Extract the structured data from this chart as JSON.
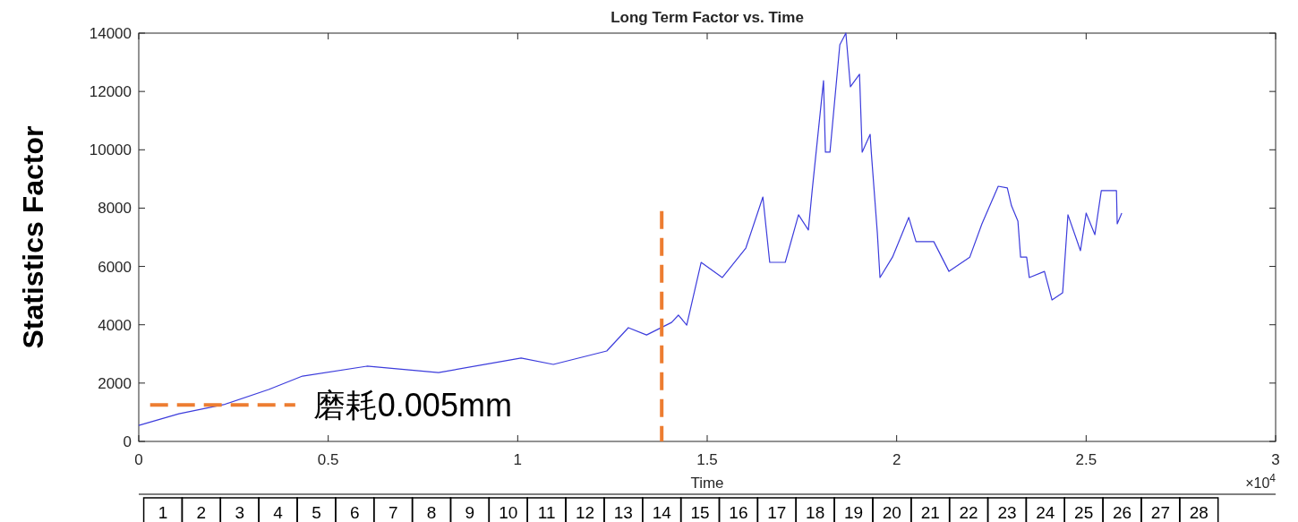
{
  "chart_data": {
    "type": "line",
    "title": "Long Term Factor vs. Time",
    "xlabel": "Time",
    "ylabel": "Statistics Factor",
    "annotations": [
      "×10$^{4}$"
    ],
    "xlim": [
      0,
      3
    ],
    "ylim": [
      0,
      14000
    ],
    "xticks": [
      0,
      0.5,
      1,
      1.5,
      2,
      2.5,
      3
    ],
    "yticks": [
      0,
      2000,
      4000,
      6000,
      8000,
      10000,
      12000,
      14000
    ],
    "x2lim": [
      0.37,
      30
    ],
    "x2ticks": [
      1,
      2,
      3,
      4,
      5,
      6,
      7,
      8,
      9,
      10,
      11,
      12,
      13,
      14,
      15,
      16,
      17,
      18,
      19,
      20,
      21,
      22,
      23,
      24,
      25,
      26,
      27,
      28
    ],
    "grid": false,
    "series": [
      {
        "color": "#3c3cdc",
        "line_style": "solid",
        "x": [
          0,
          0.106,
          0.224,
          0.343,
          0.432,
          0.602,
          0.791,
          1.009,
          1.094,
          1.235,
          1.292,
          1.34,
          1.406,
          1.424,
          1.446,
          1.484,
          1.54,
          1.602,
          1.647,
          1.665,
          1.706,
          1.741,
          1.767,
          1.777,
          1.807,
          1.812,
          1.824,
          1.85,
          1.866,
          1.878,
          1.902,
          1.909,
          1.93,
          1.933,
          1.949,
          1.956,
          1.989,
          2.032,
          2.051,
          2.098,
          2.138,
          2.193,
          2.225,
          2.268,
          2.292,
          2.303,
          2.32,
          2.327,
          2.343,
          2.35,
          2.39,
          2.41,
          2.438,
          2.452,
          2.485,
          2.5,
          2.523,
          2.54,
          2.58,
          2.582,
          2.594
        ],
        "values": [
          550,
          950,
          1260,
          1780,
          2240,
          2580,
          2360,
          2860,
          2640,
          3100,
          3900,
          3650,
          4080,
          4330,
          3990,
          6140,
          5620,
          6630,
          8380,
          6140,
          6140,
          7770,
          7250,
          8600,
          12370,
          9920,
          9920,
          13600,
          14000,
          12160,
          12590,
          9920,
          10530,
          9920,
          7150,
          5620,
          6320,
          7680,
          6850,
          6850,
          5830,
          6320,
          7460,
          8750,
          8690,
          8080,
          7550,
          6320,
          6320,
          5620,
          5830,
          4850,
          5100,
          7770,
          6540,
          7830,
          7090,
          8600,
          8600,
          7460,
          7830
        ]
      },
      {
        "name": "磨耗0.005mm",
        "color": "#ed7d31",
        "line_style": "dashed",
        "x": [
          0.03,
          0.413
        ],
        "values": [
          1250,
          1250
        ]
      },
      {
        "color": "#ed7d31",
        "line_style": "dashed",
        "x": [
          1.38,
          1.38
        ],
        "values": [
          7900,
          0
        ]
      }
    ]
  }
}
